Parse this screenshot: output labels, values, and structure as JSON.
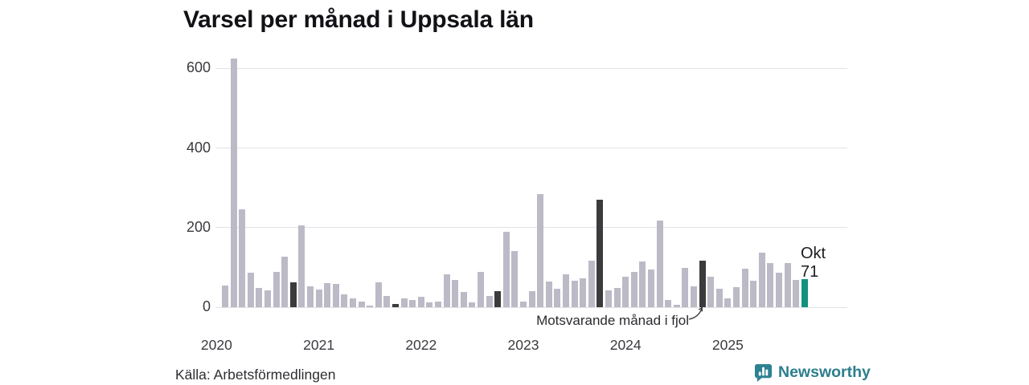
{
  "title": "Varsel per månad i Uppsala län",
  "chart_data": {
    "type": "bar",
    "title": "Varsel per månad i Uppsala län",
    "ylabel": "",
    "xlabel": "",
    "ylim": [
      0,
      630
    ],
    "y_ticks": [
      0,
      200,
      400,
      600
    ],
    "x_tick_labels": [
      "2020",
      "2021",
      "2022",
      "2023",
      "2024",
      "2025"
    ],
    "grid": "horizontal",
    "annotation": "Motsvarande månad i fjol",
    "latest": {
      "label": "Okt",
      "value": "71"
    },
    "colors": {
      "default": "#bcbac6",
      "same_month_highlight": "#3b3b3d",
      "latest": "#129180"
    },
    "bars": [
      {
        "m": "Feb 2020",
        "v": 55,
        "t": "d"
      },
      {
        "m": "Mar 2020",
        "v": 625,
        "t": "d"
      },
      {
        "m": "Apr 2020",
        "v": 245,
        "t": "d"
      },
      {
        "m": "Maj 2020",
        "v": 86,
        "t": "d"
      },
      {
        "m": "Jun 2020",
        "v": 48,
        "t": "d"
      },
      {
        "m": "Jul 2020",
        "v": 42,
        "t": "d"
      },
      {
        "m": "Aug 2020",
        "v": 88,
        "t": "d"
      },
      {
        "m": "Sep 2020",
        "v": 128,
        "t": "d"
      },
      {
        "m": "Okt 2020",
        "v": 62,
        "t": "h"
      },
      {
        "m": "Nov 2020",
        "v": 206,
        "t": "d"
      },
      {
        "m": "Dec 2020",
        "v": 53,
        "t": "d"
      },
      {
        "m": "Jan 2021",
        "v": 45,
        "t": "d"
      },
      {
        "m": "Feb 2021",
        "v": 60,
        "t": "d"
      },
      {
        "m": "Mar 2021",
        "v": 58,
        "t": "d"
      },
      {
        "m": "Apr 2021",
        "v": 33,
        "t": "d"
      },
      {
        "m": "Maj 2021",
        "v": 22,
        "t": "d"
      },
      {
        "m": "Jun 2021",
        "v": 14,
        "t": "d"
      },
      {
        "m": "Jul 2021",
        "v": 5,
        "t": "d"
      },
      {
        "m": "Aug 2021",
        "v": 62,
        "t": "d"
      },
      {
        "m": "Sep 2021",
        "v": 29,
        "t": "d"
      },
      {
        "m": "Okt 2021",
        "v": 8,
        "t": "h"
      },
      {
        "m": "Nov 2021",
        "v": 22,
        "t": "d"
      },
      {
        "m": "Dec 2021",
        "v": 18,
        "t": "d"
      },
      {
        "m": "Jan 2022",
        "v": 26,
        "t": "d"
      },
      {
        "m": "Feb 2022",
        "v": 13,
        "t": "d"
      },
      {
        "m": "Mar 2022",
        "v": 15,
        "t": "d"
      },
      {
        "m": "Apr 2022",
        "v": 83,
        "t": "d"
      },
      {
        "m": "Maj 2022",
        "v": 68,
        "t": "d"
      },
      {
        "m": "Jun 2022",
        "v": 39,
        "t": "d"
      },
      {
        "m": "Jul 2022",
        "v": 13,
        "t": "d"
      },
      {
        "m": "Aug 2022",
        "v": 88,
        "t": "d"
      },
      {
        "m": "Sep 2022",
        "v": 28,
        "t": "d"
      },
      {
        "m": "Okt 2022",
        "v": 40,
        "t": "h"
      },
      {
        "m": "Nov 2022",
        "v": 189,
        "t": "d"
      },
      {
        "m": "Dec 2022",
        "v": 142,
        "t": "d"
      },
      {
        "m": "Jan 2023",
        "v": 14,
        "t": "d"
      },
      {
        "m": "Feb 2023",
        "v": 40,
        "t": "d"
      },
      {
        "m": "Mar 2023",
        "v": 285,
        "t": "d"
      },
      {
        "m": "Apr 2023",
        "v": 64,
        "t": "d"
      },
      {
        "m": "Maj 2023",
        "v": 47,
        "t": "d"
      },
      {
        "m": "Jun 2023",
        "v": 82,
        "t": "d"
      },
      {
        "m": "Jul 2023",
        "v": 66,
        "t": "d"
      },
      {
        "m": "Aug 2023",
        "v": 73,
        "t": "d"
      },
      {
        "m": "Sep 2023",
        "v": 117,
        "t": "d"
      },
      {
        "m": "Okt 2023",
        "v": 270,
        "t": "h"
      },
      {
        "m": "Nov 2023",
        "v": 42,
        "t": "d"
      },
      {
        "m": "Dec 2023",
        "v": 49,
        "t": "d"
      },
      {
        "m": "Jan 2024",
        "v": 77,
        "t": "d"
      },
      {
        "m": "Feb 2024",
        "v": 88,
        "t": "d"
      },
      {
        "m": "Mar 2024",
        "v": 115,
        "t": "d"
      },
      {
        "m": "Apr 2024",
        "v": 94,
        "t": "d"
      },
      {
        "m": "Maj 2024",
        "v": 218,
        "t": "d"
      },
      {
        "m": "Jun 2024",
        "v": 18,
        "t": "d"
      },
      {
        "m": "Jul 2024",
        "v": 7,
        "t": "d"
      },
      {
        "m": "Aug 2024",
        "v": 98,
        "t": "d"
      },
      {
        "m": "Sep 2024",
        "v": 52,
        "t": "d"
      },
      {
        "m": "Okt 2024",
        "v": 117,
        "t": "h"
      },
      {
        "m": "Nov 2024",
        "v": 76,
        "t": "d"
      },
      {
        "m": "Dec 2024",
        "v": 46,
        "t": "d"
      },
      {
        "m": "Jan 2025",
        "v": 22,
        "t": "d"
      },
      {
        "m": "Feb 2025",
        "v": 50,
        "t": "d"
      },
      {
        "m": "Mar 2025",
        "v": 96,
        "t": "d"
      },
      {
        "m": "Apr 2025",
        "v": 67,
        "t": "d"
      },
      {
        "m": "Maj 2025",
        "v": 138,
        "t": "d"
      },
      {
        "m": "Jun 2025",
        "v": 110,
        "t": "d"
      },
      {
        "m": "Jul 2025",
        "v": 86,
        "t": "d"
      },
      {
        "m": "Aug 2025",
        "v": 110,
        "t": "d"
      },
      {
        "m": "Sep 2025",
        "v": 69,
        "t": "d"
      },
      {
        "m": "Okt 2025",
        "v": 71,
        "t": "c"
      }
    ]
  },
  "footer": {
    "source": "Källa: Arbetsförmedlingen",
    "brand": "Newsworthy"
  }
}
